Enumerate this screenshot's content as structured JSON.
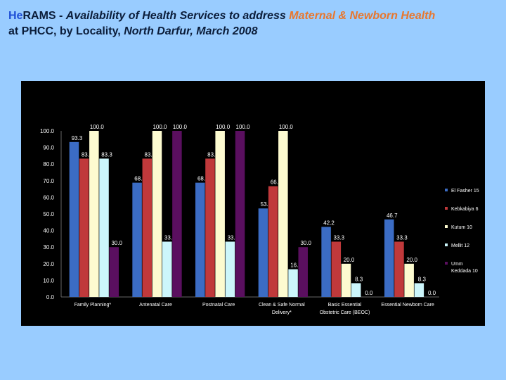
{
  "title": {
    "prefix_brand": "He",
    "prefix_rest": "RAMS - ",
    "italic_part": " Availability of Health Services to address ",
    "highlight": "Maternal & Newborn Health",
    "line2_plain": "at PHCC, by Locality, ",
    "line2_italic": "North Darfur, March 2008"
  },
  "chart_data": {
    "type": "bar",
    "categories": [
      [
        "Family Planning*"
      ],
      [
        "Antenatal Care"
      ],
      [
        "Postnatal Care"
      ],
      [
        "Clean & Safe Normal",
        "Delivery*"
      ],
      [
        "Basic Essential",
        "Obstetric Care (BEOC)"
      ],
      [
        "Essential Newborn Care"
      ]
    ],
    "series": [
      {
        "name": "El Fasher 15",
        "color": "#3b6cc4",
        "values": [
          93.3,
          68.8,
          68.8,
          53.3,
          42.2,
          46.7
        ]
      },
      {
        "name": "Kebkabiya 6",
        "color": "#c0393b",
        "values": [
          83.3,
          83.3,
          83.3,
          66.7,
          33.3,
          33.3
        ]
      },
      {
        "name": "Kutum 10",
        "color": "#fdfbd0",
        "values": [
          100.0,
          100.0,
          100.0,
          100.0,
          20.0,
          20.0
        ]
      },
      {
        "name": "Mellit 12",
        "color": "#ccf6fb",
        "values": [
          83.3,
          33.3,
          33.3,
          16.7,
          8.3,
          8.3
        ]
      },
      {
        "name": "Umm Keddada 10",
        "color": "#5a0f5f",
        "values": [
          30.0,
          100.0,
          100.0,
          30.0,
          0.0,
          0.0
        ]
      }
    ],
    "legend_labels": [
      [
        "El Fasher 15"
      ],
      [
        "Kebkabiya 6"
      ],
      [
        "Kutum 10"
      ],
      [
        "Mellit 12"
      ],
      [
        "Umm",
        "Keddada 10"
      ]
    ],
    "y_ticks": [
      "0.0",
      "10.0",
      "20.0",
      "30.0",
      "40.0",
      "50.0",
      "60.0",
      "70.0",
      "80.0",
      "90.0",
      "100.0"
    ],
    "ylim": [
      0,
      100
    ],
    "grid": false,
    "legend_position": "right"
  }
}
